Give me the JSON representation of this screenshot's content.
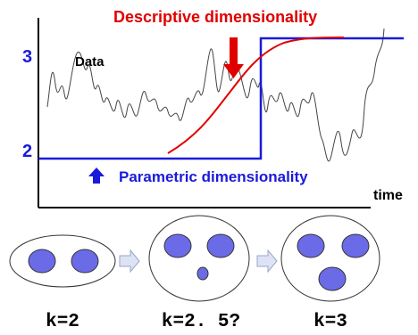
{
  "labels": {
    "descriptive": "Descriptive dimensionality",
    "data": "Data",
    "parametric": "Parametric dimensionality",
    "time_axis": "time",
    "tick_high": "3",
    "tick_low": "2"
  },
  "panels": [
    {
      "k_label": "k=2",
      "inner_circles": 2
    },
    {
      "k_label": "k=2. 5?",
      "inner_circles": 3
    },
    {
      "k_label": "k=3",
      "inner_circles": 3
    }
  ],
  "colors": {
    "descriptive_curve": "#e00000",
    "parametric_step": "#1a1adc",
    "blue_label": "#1a1adc",
    "ellipse_fill": "#6b6be8",
    "panel_arrow_fill": "#dde2f5",
    "panel_arrow_stroke": "#9aa6c8"
  }
}
